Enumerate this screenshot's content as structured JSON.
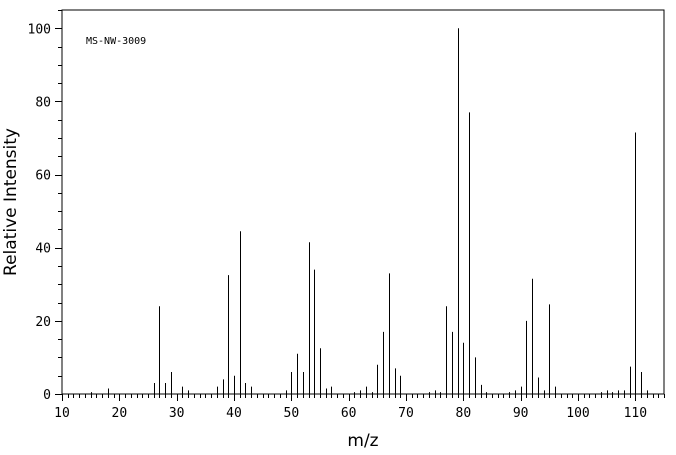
{
  "chart_data": {
    "type": "bar",
    "title": "",
    "annotation": "MS-NW-3009",
    "xlabel": "m/z",
    "ylabel": "Relative Intensity",
    "xlim": [
      10,
      115
    ],
    "ylim": [
      0,
      105
    ],
    "x_ticks": [
      10,
      20,
      30,
      40,
      50,
      60,
      70,
      80,
      90,
      100,
      110
    ],
    "y_ticks": [
      0,
      20,
      40,
      60,
      80,
      100
    ],
    "grid": false,
    "series": [
      {
        "x": [
          15,
          18,
          26,
          27,
          28,
          29,
          31,
          32,
          37,
          38,
          39,
          40,
          41,
          42,
          43,
          49,
          50,
          51,
          52,
          53,
          54,
          55,
          56,
          57,
          61,
          62,
          63,
          64,
          65,
          66,
          67,
          68,
          69,
          74,
          75,
          76,
          77,
          78,
          79,
          80,
          81,
          82,
          83,
          84,
          88,
          89,
          90,
          91,
          92,
          93,
          94,
          95,
          96,
          104,
          105,
          106,
          107,
          108,
          109,
          110,
          111,
          112
        ],
        "values": [
          0.5,
          1.5,
          3,
          24,
          3,
          6,
          2,
          1,
          2,
          4,
          32.5,
          5,
          44.5,
          3,
          2,
          1,
          6,
          11,
          6,
          41.5,
          34,
          12.5,
          1.5,
          2,
          0.5,
          1,
          2,
          0.5,
          8,
          17,
          33,
          7,
          5,
          0.5,
          1,
          0.5,
          24,
          17,
          100,
          14,
          77,
          10,
          2.5,
          0.5,
          0.5,
          1,
          2,
          20,
          31.5,
          4.5,
          1,
          24.5,
          2,
          0.5,
          1,
          0.5,
          1,
          1,
          7.5,
          71.5,
          6,
          1
        ]
      }
    ]
  }
}
